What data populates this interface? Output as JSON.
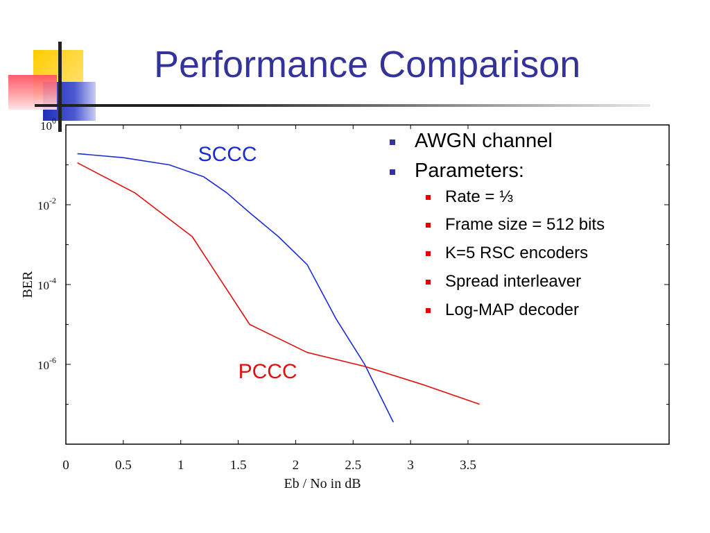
{
  "title": "Performance Comparison",
  "bullets": [
    {
      "text": "AWGN channel"
    },
    {
      "text": "Parameters:",
      "children": [
        "Rate = ⅓",
        "Frame size = 512 bits",
        "K=5 RSC encoders",
        "Spread interleaver",
        "Log-MAP decoder"
      ]
    }
  ],
  "colors": {
    "title": "#333399",
    "bullet_l1": "#333399",
    "bullet_l2": "#e00000"
  },
  "chart_data": {
    "type": "line",
    "xlabel": "Eb / No in dB",
    "ylabel": "BER",
    "xlim": [
      0,
      5.25
    ],
    "ylim": [
      -8,
      0
    ],
    "y_scale": "log10",
    "x_ticks": [
      "0",
      "0.5",
      "1",
      "1.5",
      "2",
      "2.5",
      "3",
      "3.5"
    ],
    "y_ticks": [
      {
        "base": "10",
        "exp": "0"
      },
      {
        "base": "10",
        "exp": "-2"
      },
      {
        "base": "10",
        "exp": "-4"
      },
      {
        "base": "10",
        "exp": "-6"
      }
    ],
    "grid": false,
    "series": [
      {
        "name": "SCCC",
        "color": "#1a2bd6",
        "x": [
          0.1,
          0.5,
          0.9,
          1.2,
          1.4,
          1.6,
          1.85,
          2.1,
          2.35,
          2.6,
          2.85
        ],
        "y": [
          -0.72,
          -0.82,
          -1.0,
          -1.3,
          -1.7,
          -2.2,
          -2.8,
          -3.5,
          -4.85,
          -6.0,
          -7.45
        ]
      },
      {
        "name": "PCCC",
        "color": "#e01010",
        "x": [
          0.1,
          0.6,
          1.1,
          1.6,
          2.1,
          2.6,
          3.1,
          3.6
        ],
        "y": [
          -0.95,
          -1.7,
          -2.8,
          -5.0,
          -5.7,
          -6.05,
          -6.5,
          -7.0
        ]
      }
    ]
  }
}
